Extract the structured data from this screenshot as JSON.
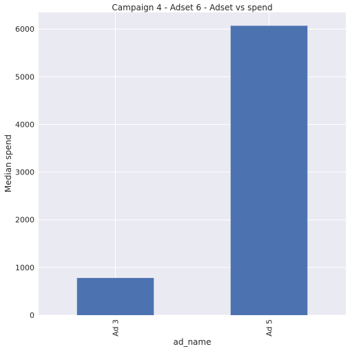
{
  "chart_data": {
    "type": "bar",
    "title": "Campaign 4 - Adset 6 - Adset vs spend",
    "xlabel": "ad_name",
    "ylabel": "Median spend",
    "categories": [
      "Ad 3",
      "Ad 5"
    ],
    "values": [
      780,
      6070
    ],
    "ylim": [
      0,
      6350
    ],
    "yticks": [
      0,
      1000,
      2000,
      3000,
      4000,
      5000,
      6000
    ],
    "grid": true,
    "bar_color": "#4c72b0",
    "background_color": "#eaeaf2"
  }
}
